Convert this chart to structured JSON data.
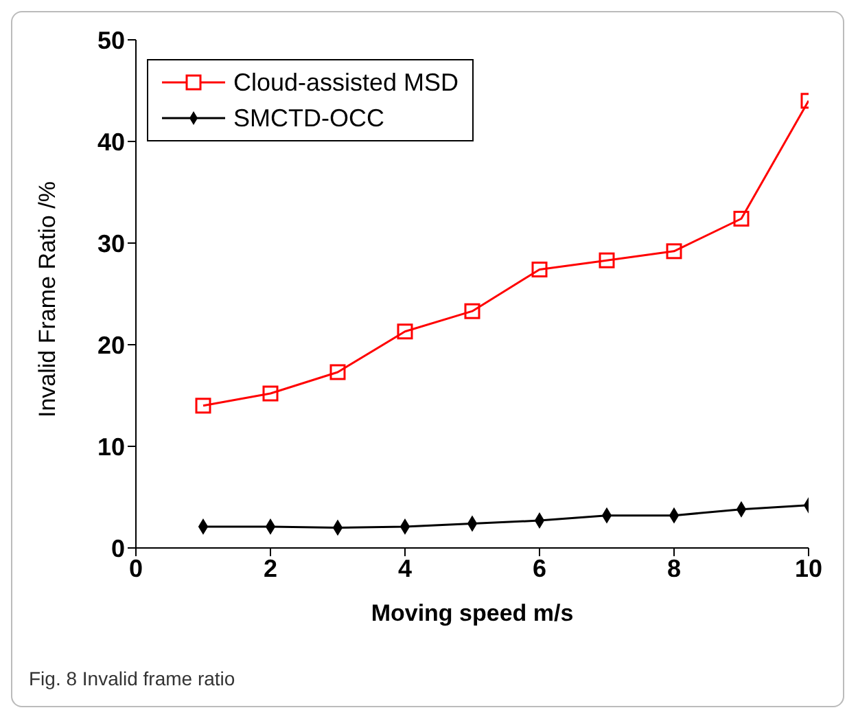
{
  "chart_data": {
    "type": "line",
    "xlabel": "Moving speed m/s",
    "ylabel": "Invalid Frame Ratio /%",
    "x": [
      1,
      2,
      3,
      4,
      5,
      6,
      7,
      8,
      9,
      10
    ],
    "series": [
      {
        "name": "Cloud-assisted MSD",
        "color": "#ff0000",
        "marker": "square",
        "values": [
          14.0,
          15.2,
          17.3,
          21.3,
          23.3,
          27.4,
          28.3,
          29.2,
          32.4,
          44.0
        ]
      },
      {
        "name": "SMCTD-OCC",
        "color": "#000000",
        "marker": "diamond",
        "values": [
          2.1,
          2.1,
          2.0,
          2.1,
          2.4,
          2.7,
          3.2,
          3.2,
          3.8,
          4.2
        ]
      }
    ],
    "xlim": [
      0,
      10
    ],
    "xticks": [
      0,
      2,
      4,
      6,
      8,
      10
    ],
    "ylim": [
      0,
      50
    ],
    "yticks": [
      0,
      10,
      20,
      30,
      40,
      50
    ],
    "grid": false,
    "legend": "top left",
    "annotations": [
      "Fig. 8 Invalid frame ratio"
    ]
  }
}
